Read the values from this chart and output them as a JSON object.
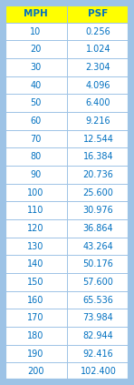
{
  "headers": [
    "MPH",
    "PSF"
  ],
  "rows": [
    [
      10,
      0.256
    ],
    [
      20,
      1.024
    ],
    [
      30,
      2.304
    ],
    [
      40,
      4.096
    ],
    [
      50,
      6.4
    ],
    [
      60,
      9.216
    ],
    [
      70,
      12.544
    ],
    [
      80,
      16.384
    ],
    [
      90,
      20.736
    ],
    [
      100,
      25.6
    ],
    [
      110,
      30.976
    ],
    [
      120,
      36.864
    ],
    [
      130,
      43.264
    ],
    [
      140,
      50.176
    ],
    [
      150,
      57.6
    ],
    [
      160,
      65.536
    ],
    [
      170,
      73.984
    ],
    [
      180,
      82.944
    ],
    [
      190,
      92.416
    ],
    [
      200,
      102.4
    ]
  ],
  "header_bg_color": "#FFFF00",
  "header_text_color": "#0070C0",
  "row_text_color": "#0070C0",
  "row_bg_color": "#FFFFFF",
  "outer_border_color": "#9DC3E6",
  "grid_color": "#9DC3E6",
  "header_fontsize": 7.5,
  "row_fontsize": 7.0
}
